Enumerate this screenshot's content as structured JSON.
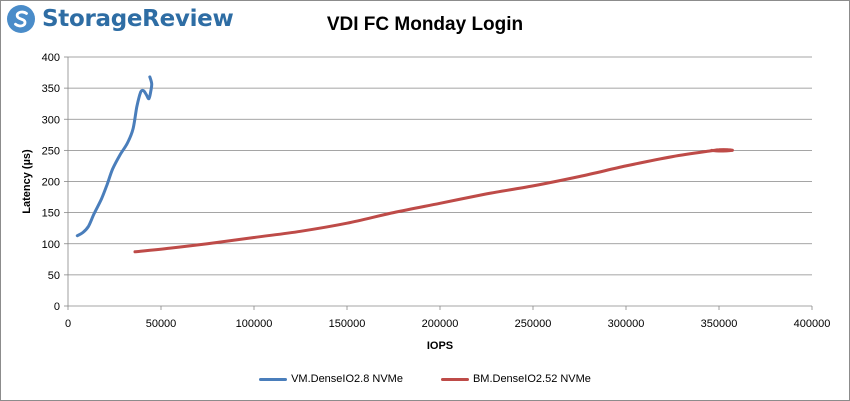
{
  "brand": {
    "name": "StorageReview",
    "color": "#2e6da4"
  },
  "chart_data": {
    "type": "line",
    "title": "VDI FC Monday Login",
    "xlabel": "IOPS",
    "ylabel": "Latency (µs)",
    "xlim": [
      0,
      400000
    ],
    "ylim": [
      0,
      400
    ],
    "x_ticks": [
      0,
      50000,
      100000,
      150000,
      200000,
      250000,
      300000,
      350000,
      400000
    ],
    "y_ticks": [
      0,
      50,
      100,
      150,
      200,
      250,
      300,
      350,
      400
    ],
    "grid": "horizontal",
    "legend": "bottom",
    "series": [
      {
        "name": "VM.DenseIO2.8 NVMe",
        "color": "#4a7ebb",
        "x": [
          5000,
          8000,
          11000,
          14000,
          18000,
          21000,
          24000,
          28000,
          32000,
          35000,
          37000,
          39000,
          40500,
          42000,
          43500,
          44500,
          45000,
          44000
        ],
        "y": [
          113,
          118,
          128,
          148,
          172,
          195,
          220,
          243,
          262,
          285,
          320,
          343,
          346,
          340,
          333,
          345,
          357,
          368
        ]
      },
      {
        "name": "BM.DenseIO2.52 NVMe",
        "color": "#be4b48",
        "x": [
          36000,
          55000,
          75000,
          100000,
          125000,
          150000,
          175000,
          200000,
          225000,
          250000,
          275000,
          300000,
          325000,
          345000,
          350000,
          355000,
          357000,
          350000,
          346000
        ],
        "y": [
          87,
          93,
          100,
          110,
          120,
          133,
          150,
          165,
          180,
          193,
          208,
          225,
          240,
          249,
          251,
          251,
          250,
          249,
          250
        ]
      }
    ]
  }
}
